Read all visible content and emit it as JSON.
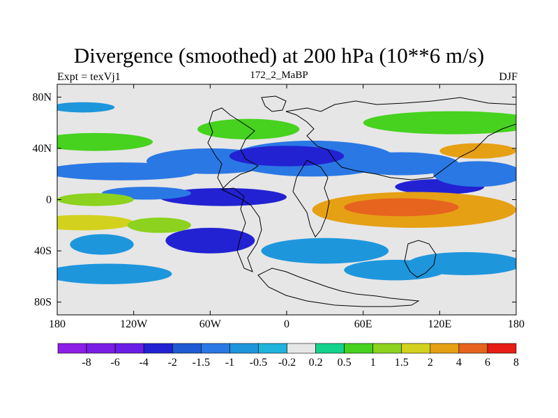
{
  "title": "Divergence (smoothed) at 200 hPa (10**6 m/s)",
  "subtitle_left": "Expt = texVj1",
  "subtitle_center": "172_2_MaBP",
  "subtitle_right": "DJF",
  "chart_data": {
    "type": "heatmap",
    "title": "Divergence (smoothed) at 200 hPa (10**6 m/s)",
    "experiment": "Expt = texVj1",
    "run": "172_2_MaBP",
    "season": "DJF",
    "xlim": [
      -180,
      180
    ],
    "ylim": [
      -90,
      90
    ],
    "x_ticks": [
      {
        "value": -180,
        "label": "180"
      },
      {
        "value": -120,
        "label": "120W"
      },
      {
        "value": -60,
        "label": "60W"
      },
      {
        "value": 0,
        "label": "0"
      },
      {
        "value": 60,
        "label": "60E"
      },
      {
        "value": 120,
        "label": "120E"
      },
      {
        "value": 180,
        "label": "180"
      }
    ],
    "y_ticks": [
      {
        "value": 80,
        "label": "80N"
      },
      {
        "value": 40,
        "label": "40N"
      },
      {
        "value": 0,
        "label": "0"
      },
      {
        "value": -40,
        "label": "40S"
      },
      {
        "value": -80,
        "label": "80S"
      }
    ],
    "colorbar": {
      "labels": [
        "-8",
        "-6",
        "-4",
        "-2",
        "-1.5",
        "-1",
        "-0.5",
        "-0.2",
        "0.2",
        "0.5",
        "1",
        "1.5",
        "2",
        "4",
        "6",
        "8"
      ],
      "colors": [
        "#8c1ee6",
        "#7a1ee6",
        "#6a1ee6",
        "#2222d2",
        "#1e5ad2",
        "#2a78e4",
        "#1e96dc",
        "#1eb4dc",
        "#e6e6e6",
        "#14d28c",
        "#46d21e",
        "#8cd21e",
        "#d2d21e",
        "#e6a014",
        "#e6641e",
        "#e61e14"
      ]
    },
    "fields": [
      {
        "lon": -130,
        "lat": 22,
        "rlon": 60,
        "rlat": 7,
        "value": -1.2
      },
      {
        "lon": -60,
        "lat": 30,
        "rlon": 50,
        "rlat": 10,
        "value": -1.0
      },
      {
        "lon": 20,
        "lat": 32,
        "rlon": 65,
        "rlat": 14,
        "value": -1.3
      },
      {
        "lon": 0,
        "lat": 34,
        "rlon": 45,
        "rlat": 8,
        "value": -2.2
      },
      {
        "lon": 90,
        "lat": 28,
        "rlon": 45,
        "rlat": 9,
        "value": -1.4
      },
      {
        "lon": 120,
        "lat": 10,
        "rlon": 35,
        "rlat": 6,
        "value": -2.1
      },
      {
        "lon": 150,
        "lat": 20,
        "rlon": 35,
        "rlat": 10,
        "value": -1.1
      },
      {
        "lon": -50,
        "lat": 2,
        "rlon": 50,
        "rlat": 7,
        "value": -2.4
      },
      {
        "lon": -110,
        "lat": 5,
        "rlon": 35,
        "rlat": 5,
        "value": -1.3
      },
      {
        "lon": -60,
        "lat": -32,
        "rlon": 35,
        "rlat": 10,
        "value": -2.3
      },
      {
        "lon": -145,
        "lat": -35,
        "rlon": 25,
        "rlat": 8,
        "value": -0.8
      },
      {
        "lon": 30,
        "lat": -40,
        "rlon": 50,
        "rlat": 10,
        "value": -0.8
      },
      {
        "lon": 85,
        "lat": -55,
        "rlon": 40,
        "rlat": 8,
        "value": -0.8
      },
      {
        "lon": 140,
        "lat": -50,
        "rlon": 45,
        "rlat": 9,
        "value": -0.9
      },
      {
        "lon": -140,
        "lat": -58,
        "rlon": 50,
        "rlat": 8,
        "value": -0.6
      },
      {
        "lon": -160,
        "lat": 72,
        "rlon": 25,
        "rlat": 4,
        "value": -0.8
      },
      {
        "lon": -150,
        "lat": 45,
        "rlon": 45,
        "rlat": 7,
        "value": 0.8
      },
      {
        "lon": -30,
        "lat": 55,
        "rlon": 40,
        "rlat": 8,
        "value": 0.7
      },
      {
        "lon": 130,
        "lat": 60,
        "rlon": 70,
        "rlat": 9,
        "value": 0.9
      },
      {
        "lon": 150,
        "lat": 38,
        "rlon": 30,
        "rlat": 6,
        "value": 2.2
      },
      {
        "lon": -150,
        "lat": 0,
        "rlon": 30,
        "rlat": 5,
        "value": 1.3
      },
      {
        "lon": -160,
        "lat": -18,
        "rlon": 40,
        "rlat": 6,
        "value": 2.0
      },
      {
        "lon": -100,
        "lat": -20,
        "rlon": 25,
        "rlat": 6,
        "value": 1.2
      },
      {
        "lon": 100,
        "lat": -8,
        "rlon": 80,
        "rlat": 14,
        "value": 2.5
      },
      {
        "lon": 90,
        "lat": -6,
        "rlon": 45,
        "rlat": 7,
        "value": 4.5
      }
    ],
    "note": "Filled contours of 200 hPa divergence over a global lat-lon grid with continental outlines"
  }
}
